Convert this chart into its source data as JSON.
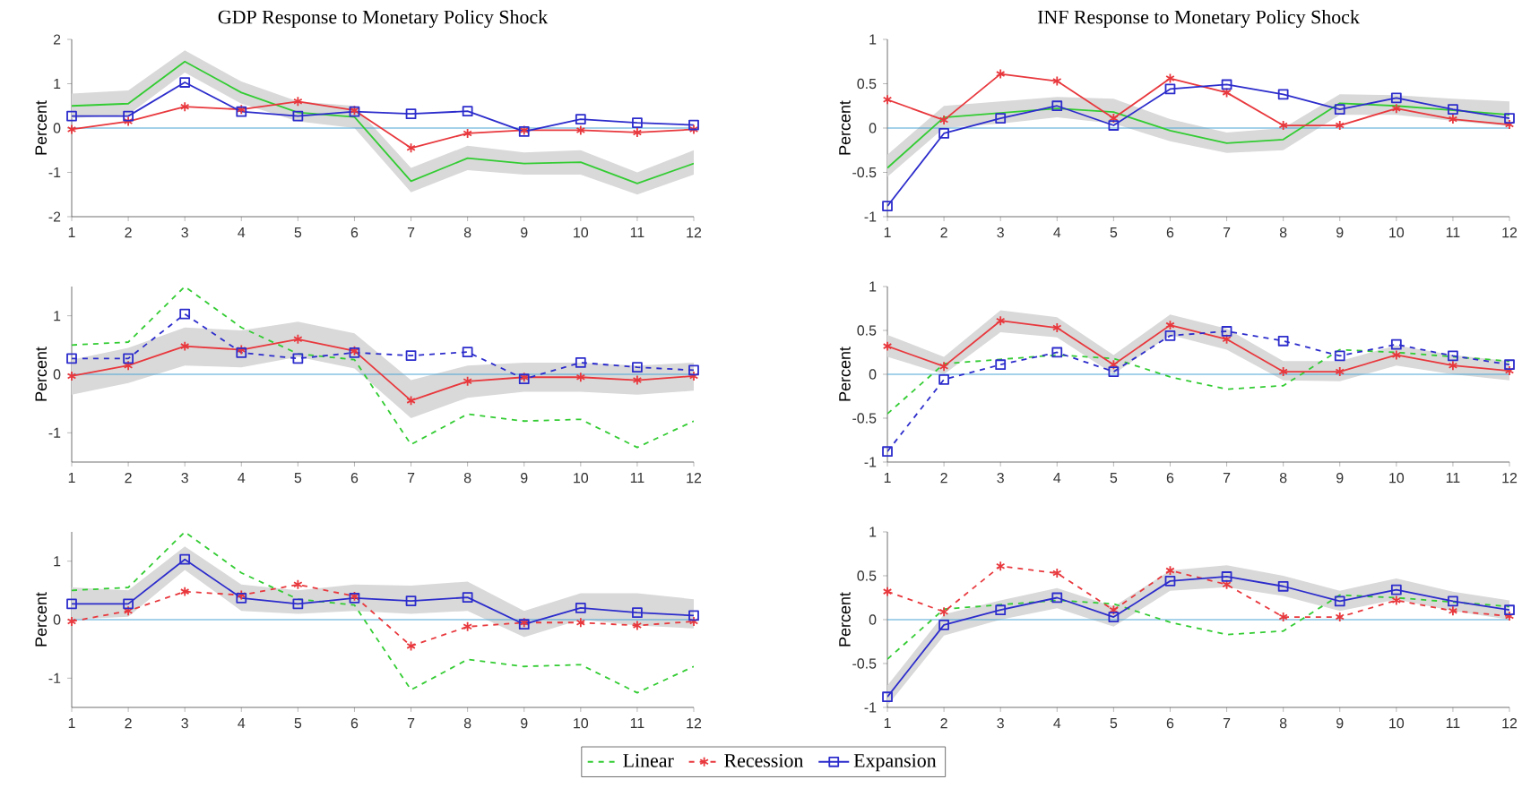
{
  "chart_data": [
    {
      "type": "line",
      "title": "GDP Response to Monetary Policy Shock",
      "ylabel": "Percent",
      "x": [
        1,
        2,
        3,
        4,
        5,
        6,
        7,
        8,
        9,
        10,
        11,
        12
      ],
      "xlim": [
        1,
        12
      ],
      "xticks": [
        1,
        2,
        3,
        4,
        5,
        6,
        7,
        8,
        9,
        10,
        11,
        12
      ],
      "ylim": [
        -2,
        2
      ],
      "yticks": [
        -2,
        -1,
        0,
        1,
        2
      ],
      "ref_lines": [
        {
          "axis": "y",
          "value": 0,
          "color": "#4da6d6"
        }
      ],
      "series": [
        {
          "color": "#33cc33",
          "marker": "none",
          "line_style": "solid",
          "values": [
            0.5,
            0.55,
            1.5,
            0.8,
            0.35,
            0.25,
            -1.2,
            -0.68,
            -0.8,
            -0.77,
            -1.25,
            -0.8
          ],
          "lower": [
            0.22,
            0.3,
            1.25,
            0.55,
            0.15,
            0.0,
            -1.45,
            -0.95,
            -1.05,
            -1.05,
            -1.5,
            -1.05
          ],
          "upper": [
            0.78,
            0.85,
            1.75,
            1.05,
            0.6,
            0.5,
            -0.9,
            -0.4,
            -0.55,
            -0.5,
            -1.0,
            -0.5
          ]
        },
        {
          "color": "#e8383d",
          "marker": "cross",
          "line_style": "solid",
          "values": [
            -0.03,
            0.15,
            0.48,
            0.42,
            0.6,
            0.4,
            -0.45,
            -0.12,
            -0.05,
            -0.05,
            -0.1,
            -0.03
          ]
        },
        {
          "color": "#2c2ccc",
          "marker": "square",
          "line_style": "solid",
          "values": [
            0.27,
            0.27,
            1.03,
            0.37,
            0.27,
            0.37,
            0.32,
            0.38,
            -0.08,
            0.2,
            0.12,
            0.07
          ]
        }
      ]
    },
    {
      "type": "line",
      "title": "INF Response to Monetary Policy Shock",
      "ylabel": "Percent",
      "x": [
        1,
        2,
        3,
        4,
        5,
        6,
        7,
        8,
        9,
        10,
        11,
        12
      ],
      "xlim": [
        1,
        12
      ],
      "xticks": [
        1,
        2,
        3,
        4,
        5,
        6,
        7,
        8,
        9,
        10,
        11,
        12
      ],
      "ylim": [
        -1,
        1
      ],
      "yticks": [
        -1,
        -0.5,
        0,
        0.5,
        1
      ],
      "ref_lines": [
        {
          "axis": "y",
          "value": 0,
          "color": "#4da6d6"
        }
      ],
      "series": [
        {
          "color": "#33cc33",
          "marker": "none",
          "line_style": "solid",
          "values": [
            -0.45,
            0.12,
            0.17,
            0.22,
            0.18,
            -0.03,
            -0.17,
            -0.13,
            0.28,
            0.25,
            0.2,
            0.15
          ],
          "lower": [
            -0.55,
            0.0,
            0.05,
            0.12,
            0.05,
            -0.15,
            -0.28,
            -0.25,
            0.15,
            0.15,
            0.08,
            0.02
          ],
          "upper": [
            -0.3,
            0.25,
            0.3,
            0.35,
            0.33,
            0.1,
            -0.05,
            0.0,
            0.38,
            0.37,
            0.33,
            0.3
          ]
        },
        {
          "color": "#e8383d",
          "marker": "cross",
          "line_style": "solid",
          "values": [
            0.32,
            0.09,
            0.61,
            0.53,
            0.11,
            0.56,
            0.4,
            0.03,
            0.03,
            0.22,
            0.1,
            0.04
          ]
        },
        {
          "color": "#2c2ccc",
          "marker": "square",
          "line_style": "solid",
          "values": [
            -0.88,
            -0.06,
            0.11,
            0.25,
            0.03,
            0.44,
            0.49,
            0.38,
            0.21,
            0.34,
            0.21,
            0.11
          ]
        }
      ]
    },
    {
      "type": "line",
      "ylabel": "Percent",
      "x": [
        1,
        2,
        3,
        4,
        5,
        6,
        7,
        8,
        9,
        10,
        11,
        12
      ],
      "xlim": [
        1,
        12
      ],
      "xticks": [
        1,
        2,
        3,
        4,
        5,
        6,
        7,
        8,
        9,
        10,
        11,
        12
      ],
      "ylim": [
        -1.5,
        1.5
      ],
      "yticks": [
        -1,
        0,
        1
      ],
      "ref_lines": [
        {
          "axis": "y",
          "value": 0,
          "color": "#4da6d6"
        }
      ],
      "series": [
        {
          "color": "#33cc33",
          "marker": "none",
          "line_style": "dashed",
          "values": [
            0.5,
            0.55,
            1.5,
            0.8,
            0.35,
            0.25,
            -1.2,
            -0.68,
            -0.8,
            -0.77,
            -1.25,
            -0.8
          ]
        },
        {
          "color": "#e8383d",
          "marker": "cross",
          "line_style": "solid",
          "values": [
            -0.03,
            0.15,
            0.48,
            0.42,
            0.6,
            0.4,
            -0.45,
            -0.12,
            -0.05,
            -0.05,
            -0.1,
            -0.03
          ],
          "lower": [
            -0.35,
            -0.15,
            0.15,
            0.12,
            0.3,
            0.1,
            -0.75,
            -0.4,
            -0.3,
            -0.3,
            -0.35,
            -0.28
          ],
          "upper": [
            0.25,
            0.45,
            0.8,
            0.75,
            0.9,
            0.7,
            -0.1,
            0.15,
            0.2,
            0.2,
            0.15,
            0.2
          ]
        },
        {
          "color": "#2c2ccc",
          "marker": "square",
          "line_style": "dashed",
          "values": [
            0.27,
            0.27,
            1.03,
            0.37,
            0.27,
            0.37,
            0.32,
            0.38,
            -0.08,
            0.2,
            0.12,
            0.07
          ]
        }
      ]
    },
    {
      "type": "line",
      "ylabel": "Percent",
      "x": [
        1,
        2,
        3,
        4,
        5,
        6,
        7,
        8,
        9,
        10,
        11,
        12
      ],
      "xlim": [
        1,
        12
      ],
      "xticks": [
        1,
        2,
        3,
        4,
        5,
        6,
        7,
        8,
        9,
        10,
        11,
        12
      ],
      "ylim": [
        -1,
        1
      ],
      "yticks": [
        -1,
        -0.5,
        0,
        0.5,
        1
      ],
      "ref_lines": [
        {
          "axis": "y",
          "value": 0,
          "color": "#4da6d6"
        }
      ],
      "series": [
        {
          "color": "#33cc33",
          "marker": "none",
          "line_style": "dashed",
          "values": [
            -0.45,
            0.12,
            0.17,
            0.22,
            0.18,
            -0.03,
            -0.17,
            -0.13,
            0.28,
            0.25,
            0.2,
            0.15
          ]
        },
        {
          "color": "#e8383d",
          "marker": "cross",
          "line_style": "solid",
          "values": [
            0.32,
            0.09,
            0.61,
            0.53,
            0.11,
            0.56,
            0.4,
            0.03,
            0.03,
            0.22,
            0.1,
            0.04
          ],
          "lower": [
            0.2,
            0.0,
            0.48,
            0.42,
            0.0,
            0.45,
            0.28,
            -0.07,
            -0.08,
            0.1,
            0.0,
            -0.07
          ],
          "upper": [
            0.45,
            0.2,
            0.73,
            0.65,
            0.22,
            0.68,
            0.52,
            0.15,
            0.15,
            0.33,
            0.22,
            0.15
          ]
        },
        {
          "color": "#2c2ccc",
          "marker": "square",
          "line_style": "dashed",
          "values": [
            -0.88,
            -0.06,
            0.11,
            0.25,
            0.03,
            0.44,
            0.49,
            0.38,
            0.21,
            0.34,
            0.21,
            0.11
          ]
        }
      ]
    },
    {
      "type": "line",
      "ylabel": "Percent",
      "x": [
        1,
        2,
        3,
        4,
        5,
        6,
        7,
        8,
        9,
        10,
        11,
        12
      ],
      "xlim": [
        1,
        12
      ],
      "xticks": [
        1,
        2,
        3,
        4,
        5,
        6,
        7,
        8,
        9,
        10,
        11,
        12
      ],
      "ylim": [
        -1.5,
        1.5
      ],
      "yticks": [
        -1,
        0,
        1
      ],
      "legend": "bottom",
      "ref_lines": [
        {
          "axis": "y",
          "value": 0,
          "color": "#4da6d6"
        }
      ],
      "series": [
        {
          "name": "Linear",
          "color": "#33cc33",
          "marker": "none",
          "line_style": "dashed",
          "values": [
            0.5,
            0.55,
            1.5,
            0.8,
            0.35,
            0.25,
            -1.2,
            -0.68,
            -0.8,
            -0.77,
            -1.25,
            -0.8
          ]
        },
        {
          "name": "Recession",
          "color": "#e8383d",
          "marker": "cross",
          "line_style": "dashed",
          "values": [
            -0.03,
            0.15,
            0.48,
            0.42,
            0.6,
            0.4,
            -0.45,
            -0.12,
            -0.05,
            -0.05,
            -0.1,
            -0.03
          ]
        },
        {
          "name": "Expansion",
          "color": "#2c2ccc",
          "marker": "square",
          "line_style": "solid",
          "values": [
            0.27,
            0.27,
            1.03,
            0.37,
            0.27,
            0.37,
            0.32,
            0.38,
            -0.08,
            0.2,
            0.12,
            0.07
          ],
          "lower": [
            0.0,
            0.05,
            0.85,
            0.15,
            0.1,
            0.15,
            0.1,
            0.15,
            -0.3,
            0.0,
            -0.1,
            -0.15
          ],
          "upper": [
            0.55,
            0.5,
            1.25,
            0.6,
            0.5,
            0.6,
            0.58,
            0.65,
            0.15,
            0.45,
            0.45,
            0.35
          ]
        }
      ]
    },
    {
      "type": "line",
      "ylabel": "Percent",
      "x": [
        1,
        2,
        3,
        4,
        5,
        6,
        7,
        8,
        9,
        10,
        11,
        12
      ],
      "xlim": [
        1,
        12
      ],
      "xticks": [
        1,
        2,
        3,
        4,
        5,
        6,
        7,
        8,
        9,
        10,
        11,
        12
      ],
      "ylim": [
        -1,
        1
      ],
      "yticks": [
        -1,
        -0.5,
        0,
        0.5,
        1
      ],
      "ref_lines": [
        {
          "axis": "y",
          "value": 0,
          "color": "#4da6d6"
        }
      ],
      "series": [
        {
          "color": "#33cc33",
          "marker": "none",
          "line_style": "dashed",
          "values": [
            -0.45,
            0.12,
            0.17,
            0.22,
            0.18,
            -0.03,
            -0.17,
            -0.13,
            0.28,
            0.25,
            0.2,
            0.15
          ]
        },
        {
          "color": "#e8383d",
          "marker": "cross",
          "line_style": "dashed",
          "values": [
            0.32,
            0.09,
            0.61,
            0.53,
            0.11,
            0.56,
            0.4,
            0.03,
            0.03,
            0.22,
            0.1,
            0.04
          ]
        },
        {
          "color": "#2c2ccc",
          "marker": "square",
          "line_style": "solid",
          "values": [
            -0.88,
            -0.06,
            0.11,
            0.25,
            0.03,
            0.44,
            0.49,
            0.38,
            0.21,
            0.34,
            0.21,
            0.11
          ],
          "lower": [
            -0.98,
            -0.18,
            0.0,
            0.13,
            -0.08,
            0.33,
            0.37,
            0.27,
            0.1,
            0.23,
            0.1,
            0.0
          ],
          "upper": [
            -0.75,
            0.06,
            0.22,
            0.36,
            0.15,
            0.56,
            0.62,
            0.5,
            0.33,
            0.47,
            0.32,
            0.22
          ]
        }
      ]
    }
  ]
}
